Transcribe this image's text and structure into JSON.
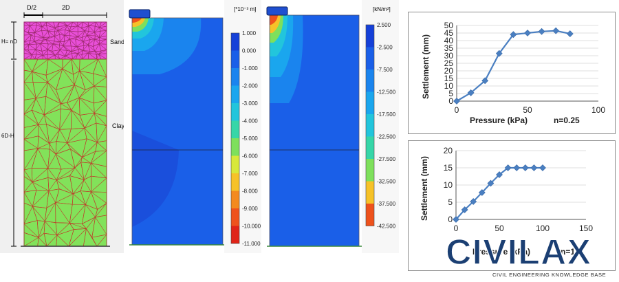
{
  "mesh_panel": {
    "dim_half": "D/2",
    "dim_width": "2D",
    "dim_layer": "H= nD",
    "dim_depth": "6D-H",
    "sand_label": "Sand",
    "clay_label": "Clay"
  },
  "disp_legend": {
    "unit": "[*10⁻³ m]",
    "levels": [
      "1.000",
      "0.000",
      "-1.000",
      "-2.000",
      "-3.000",
      "-4.000",
      "-5.000",
      "-6.000",
      "-7.000",
      "-8.000",
      "-9.000",
      "-10.000",
      "-11.000"
    ],
    "colors": [
      "#1540d8",
      "#1a5fe8",
      "#1a84ee",
      "#1aa6ee",
      "#22c5dc",
      "#36d6a8",
      "#7ee05c",
      "#d8e83a",
      "#f6c228",
      "#f38a1e",
      "#ee521c",
      "#e02418"
    ]
  },
  "stress_legend": {
    "unit": "[kN/m²]",
    "levels": [
      "2.500",
      "-2.500",
      "-7.500",
      "-12.500",
      "-17.500",
      "-22.500",
      "-27.500",
      "-32.500",
      "-37.500",
      "-42.500"
    ],
    "colors": [
      "#1540d8",
      "#1a5fe8",
      "#1a84ee",
      "#1aa6ee",
      "#22c5dc",
      "#36d6a8",
      "#7ee05c",
      "#f6c228",
      "#ee521c"
    ]
  },
  "chart_data": [
    {
      "type": "line",
      "title": "",
      "xlabel": "Pressure (kPa)",
      "ylabel": "Settlement (mm)",
      "annotation": "n=0.25",
      "xlim": [
        0,
        100
      ],
      "ylim": [
        0,
        50
      ],
      "xticks": [
        0,
        50,
        100
      ],
      "yticks": [
        0,
        5,
        10,
        15,
        20,
        25,
        30,
        35,
        40,
        45,
        50
      ],
      "grid": true,
      "series": [
        {
          "x": [
            0,
            10,
            20,
            30,
            40,
            50,
            60,
            70,
            80
          ],
          "values": [
            0,
            5.5,
            13.5,
            31.5,
            44,
            45,
            46,
            46.5,
            44.5
          ]
        }
      ]
    },
    {
      "type": "line",
      "title": "",
      "xlabel": "Pressure (kPa)",
      "ylabel": "Settlement (mm)",
      "annotation": "n=1",
      "xlim": [
        0,
        150
      ],
      "ylim": [
        0,
        20
      ],
      "xticks": [
        0,
        50,
        100,
        150
      ],
      "yticks": [
        0,
        5,
        10,
        15,
        20
      ],
      "grid": true,
      "series": [
        {
          "x": [
            0,
            10,
            20,
            30,
            40,
            50,
            60,
            70,
            80,
            90,
            100
          ],
          "values": [
            0,
            2.8,
            5.2,
            7.8,
            10.5,
            13,
            15,
            15,
            15,
            15,
            15
          ]
        }
      ]
    }
  ],
  "watermark": {
    "brand": "CIVILAX",
    "tagline": "CIVIL ENGINEERING KNOWLEDGE BASE"
  }
}
